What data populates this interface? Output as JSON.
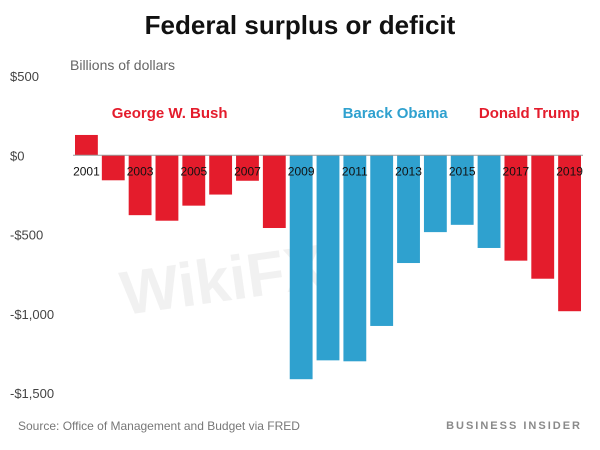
{
  "header": {
    "title": "Federal surplus or deficit",
    "unit_label": "Billions of dollars"
  },
  "footer": {
    "source": "Source: Office of Management and Budget via FRED",
    "brand": "BUSINESS INSIDER"
  },
  "watermark": "WikiFX",
  "colors": {
    "republican": "#e41c2c",
    "democrat": "#2fa1cf",
    "axis_text": "#444444",
    "zero_line": "#9a9a9a"
  },
  "chart_data": {
    "type": "bar",
    "title": "Federal surplus or deficit",
    "ylabel": "Billions of dollars",
    "xlabel": "",
    "ylim": [
      -1500,
      500
    ],
    "yticks": [
      500,
      0,
      -500,
      -1000,
      -1500
    ],
    "ytick_labels": [
      "$500",
      "$0",
      "-$500",
      "-$1,000",
      "-$1,500"
    ],
    "grid": false,
    "categories": [
      "2001",
      "2002",
      "2003",
      "2004",
      "2005",
      "2006",
      "2007",
      "2008",
      "2009",
      "2010",
      "2011",
      "2012",
      "2013",
      "2014",
      "2015",
      "2016",
      "2017",
      "2018",
      "2019"
    ],
    "xtick_labels": [
      "2001",
      "",
      "2003",
      "",
      "2005",
      "",
      "2007",
      "",
      "2009",
      "",
      "2011",
      "",
      "2013",
      "",
      "2015",
      "",
      "2017",
      "",
      "2019"
    ],
    "values": [
      128,
      -158,
      -378,
      -413,
      -318,
      -248,
      -161,
      -459,
      -1413,
      -1294,
      -1300,
      -1077,
      -680,
      -485,
      -439,
      -585,
      -665,
      -779,
      -984
    ],
    "administrations": [
      {
        "name": "George W. Bush",
        "years": [
          "2001",
          "2002",
          "2003",
          "2004",
          "2005",
          "2006",
          "2007",
          "2008"
        ],
        "color": "#e41c2c"
      },
      {
        "name": "Barack Obama",
        "years": [
          "2009",
          "2010",
          "2011",
          "2012",
          "2013",
          "2014",
          "2015",
          "2016"
        ],
        "color": "#2fa1cf"
      },
      {
        "name": "Donald Trump",
        "years": [
          "2017",
          "2018",
          "2019"
        ],
        "color": "#e41c2c"
      }
    ]
  }
}
